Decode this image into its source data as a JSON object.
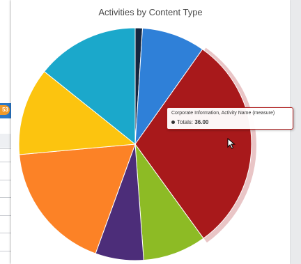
{
  "background": {
    "badge": "53"
  },
  "chart_data": {
    "type": "pie",
    "title": "Activities by Content Type",
    "slices": [
      {
        "value": 1.2,
        "color": "#15263f"
      },
      {
        "value": 10.5,
        "color": "#2f80d8"
      },
      {
        "value": 36.0,
        "color": "#a8191b",
        "highlighted": true
      },
      {
        "value": 10.5,
        "color": "#8dbb25"
      },
      {
        "value": 8.0,
        "color": "#4c2d79"
      },
      {
        "value": 21.5,
        "color": "#fc8226"
      },
      {
        "value": 14.5,
        "color": "#fcc40f"
      },
      {
        "value": 17.0,
        "color": "#1ba8cb"
      }
    ]
  },
  "tooltip": {
    "header": "Corporate Information, Activity Name (measure)",
    "series_label": "Totals:",
    "value": "36.00"
  }
}
